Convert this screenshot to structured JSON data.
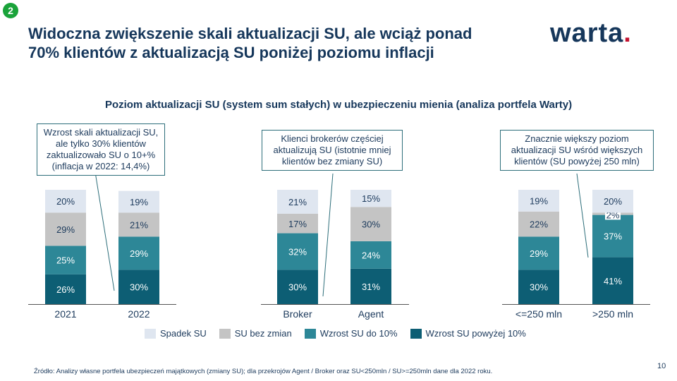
{
  "slide_number": "2",
  "title_line1": "Widoczna zwiększenie skali aktualizacji SU, ale wciąż ponad",
  "title_line2": "70% klientów z aktualizacją SU poniżej poziomu inflacji",
  "logo_text": "warta",
  "logo_dot": ".",
  "subtitle": "Poziom aktualizacji SU (system sum stałych) w ubezpieczeniu mienia (analiza portfela Warty)",
  "callouts": {
    "c1": [
      "Wzrost skali aktualizacji SU,",
      "ale tylko 30% klientów",
      "zaktualizowało SU o 10+%",
      "(inflacja w 2022: 14,4%)"
    ],
    "c2": [
      "Klienci brokerów częściej",
      "aktualizują SU (istotnie mniej",
      "klientów bez zmiany SU)"
    ],
    "c3": [
      "Znacznie większy poziom",
      "aktualizacji SU wśród większych",
      "klientów (SU powyżej 250 mln)"
    ]
  },
  "legend": [
    {
      "label": "Spadek SU",
      "color": "#dfe6f0"
    },
    {
      "label": "SU bez zmian",
      "color": "#c4c4c4"
    },
    {
      "label": "Wzrost SU do 10%",
      "color": "#2d8797"
    },
    {
      "label": "Wzrost SU powyżej 10%",
      "color": "#0d5e74"
    }
  ],
  "source": "Źródło: Analizy własne portfela ubezpieczeń majątkowych (zmiany SU); dla przekrojów Agent / Broker oraz SU<250mln / SU>=250mln dane dla 2022 roku.",
  "page_number": "10",
  "chart_data": [
    {
      "type": "bar",
      "stacked": true,
      "categories": [
        "2021",
        "2022"
      ],
      "series": [
        {
          "name": "Wzrost SU powyżej 10%",
          "values": [
            26,
            30
          ],
          "labels": [
            "26%",
            "30%"
          ]
        },
        {
          "name": "Wzrost SU do 10%",
          "values": [
            25,
            29
          ],
          "labels": [
            "25%",
            "29%"
          ]
        },
        {
          "name": "SU bez zmian",
          "values": [
            29,
            21
          ],
          "labels": [
            "29%",
            "21%"
          ]
        },
        {
          "name": "Spadek SU",
          "values": [
            20,
            19
          ],
          "labels": [
            "20%",
            "19%"
          ]
        }
      ],
      "ylim": [
        0,
        100
      ]
    },
    {
      "type": "bar",
      "stacked": true,
      "categories": [
        "Broker",
        "Agent"
      ],
      "series": [
        {
          "name": "Wzrost SU powyżej 10%",
          "values": [
            30,
            31
          ],
          "labels": [
            "30%",
            "31%"
          ]
        },
        {
          "name": "Wzrost SU do 10%",
          "values": [
            32,
            24
          ],
          "labels": [
            "32%",
            "24%"
          ]
        },
        {
          "name": "SU bez zmian",
          "values": [
            17,
            30
          ],
          "labels": [
            "17%",
            "30%"
          ]
        },
        {
          "name": "Spadek SU",
          "values": [
            21,
            15
          ],
          "labels": [
            "21%",
            "15%"
          ]
        }
      ],
      "ylim": [
        0,
        100
      ]
    },
    {
      "type": "bar",
      "stacked": true,
      "categories": [
        "<=250 mln",
        ">250 mln"
      ],
      "series": [
        {
          "name": "Wzrost SU powyżej 10%",
          "values": [
            30,
            41
          ],
          "labels": [
            "30%",
            "41%"
          ]
        },
        {
          "name": "Wzrost SU do 10%",
          "values": [
            29,
            37
          ],
          "labels": [
            "29%",
            "37%"
          ]
        },
        {
          "name": "SU bez zmian",
          "values": [
            22,
            2
          ],
          "labels": [
            "22%",
            "2%"
          ]
        },
        {
          "name": "Spadek SU",
          "values": [
            19,
            20
          ],
          "labels": [
            "19%",
            "20%"
          ]
        }
      ],
      "ylim": [
        0,
        100
      ]
    }
  ]
}
